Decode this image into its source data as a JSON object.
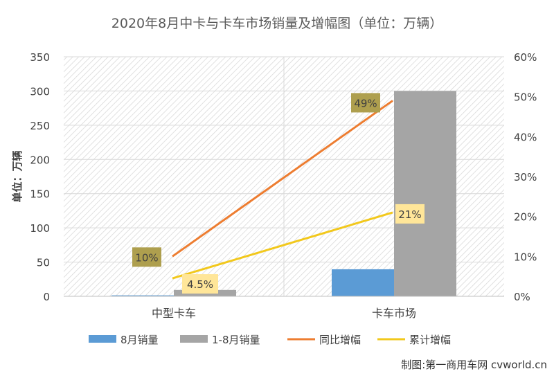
{
  "chart_data": {
    "type": "bar+line",
    "title": "2020年8月中卡与卡车市场销量及增幅图（单位：万辆）",
    "ylabel": "单位：万辆",
    "categories": [
      "中型卡车",
      "卡车市场"
    ],
    "ylim": [
      0,
      350
    ],
    "y_ticks": [
      "0",
      "50",
      "100",
      "150",
      "200",
      "250",
      "300",
      "350"
    ],
    "y2lim": [
      0,
      60
    ],
    "y2_ticks": [
      "0%",
      "10%",
      "20%",
      "30%",
      "40%",
      "50%",
      "60%"
    ],
    "grid": true,
    "legend_position": "bottom",
    "bar_series": [
      {
        "name": "8月销量",
        "values": [
          1.4,
          39.5
        ],
        "color": "#5b9bd5"
      },
      {
        "name": "1-8月销量",
        "values": [
          9.3,
          300
        ],
        "color": "#a5a5a5"
      }
    ],
    "line_series": [
      {
        "name": "同比增幅",
        "values": [
          10,
          49
        ],
        "labels": [
          "10%",
          "49%"
        ],
        "color": "#ed7d31",
        "label_bg": "#ae9f4e"
      },
      {
        "name": "累计增幅",
        "values": [
          4.5,
          21
        ],
        "labels": [
          "4.5%",
          "21%"
        ],
        "color": "#f2c81c",
        "label_bg": "#ffe699"
      }
    ]
  },
  "credit": "制图:第一商用车网 cvworld.cn"
}
